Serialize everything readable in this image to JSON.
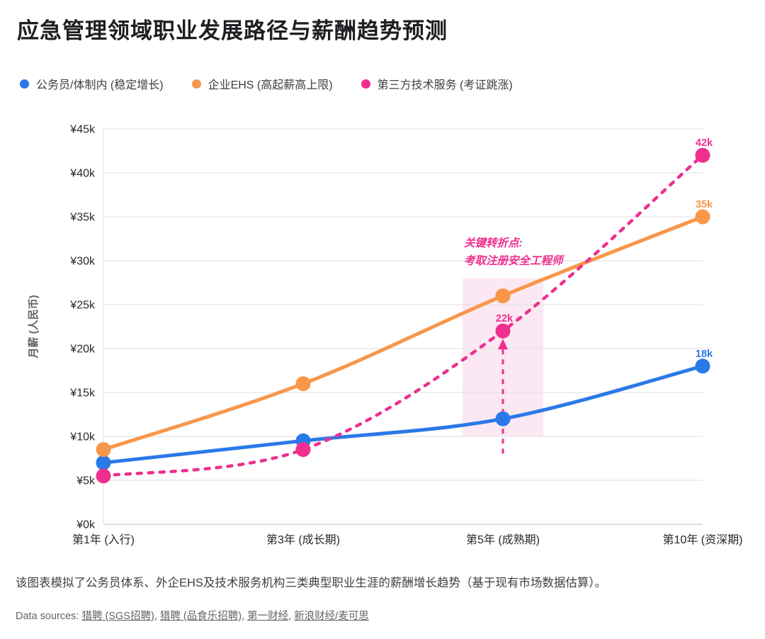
{
  "chart_data": {
    "type": "line",
    "title": "应急管理领域职业发展路径与薪酬趋势预测",
    "categories": [
      "第1年 (入行)",
      "第3年 (成长期)",
      "第5年 (成熟期)",
      "第10年 (资深期)"
    ],
    "series": [
      {
        "id": "civil-service",
        "name": "公务员/体制内 (稳定增长)",
        "color": "#2a79e8",
        "line_style": "solid",
        "values": [
          7,
          9.5,
          12,
          18
        ],
        "point_labels": [
          null,
          null,
          null,
          "18k"
        ]
      },
      {
        "id": "enterprise-ehs",
        "name": "企业EHS (高起薪高上限)",
        "color": "#f8964a",
        "line_style": "solid",
        "values": [
          8.5,
          16,
          26,
          35
        ],
        "point_labels": [
          null,
          null,
          null,
          "35k"
        ]
      },
      {
        "id": "third-party-tech",
        "name": "第三方技术服务 (考证跳涨)",
        "color": "#ee2f8f",
        "line_style": "dashed",
        "values": [
          5.5,
          8.5,
          22,
          42
        ],
        "point_labels": [
          null,
          null,
          "22k",
          "42k"
        ]
      }
    ],
    "xlabel": "",
    "ylabel": "月薪 (人民币)",
    "ylim": [
      0,
      45
    ],
    "y_tick_step": 5,
    "y_ticks": [
      "¥0k",
      "¥5k",
      "¥10k",
      "¥15k",
      "¥20k",
      "¥25k",
      "¥30k",
      "¥35k",
      "¥40k",
      "¥45k"
    ],
    "grid": "horizontal",
    "legend_position": "top",
    "annotation": {
      "text_lines": [
        "关键转折点:",
        "考取注册安全工程师"
      ],
      "color": "#ee2f8f",
      "category": "第5年 (成熟期)",
      "category_index": 2,
      "highlight_value_range": [
        10,
        28
      ],
      "highlight_color": "#fce8f2"
    }
  },
  "footer": {
    "note": "该图表模拟了公务员体系、外企EHS及技术服务机构三类典型职业生涯的薪酬增长趋势（基于现有市场数据估算）。",
    "sources_prefix": "Data sources:",
    "sources": [
      "猎聘 (SGS招聘)",
      "猎聘 (品食乐招聘)",
      "第一财经",
      "新浪财经/麦可思"
    ]
  }
}
